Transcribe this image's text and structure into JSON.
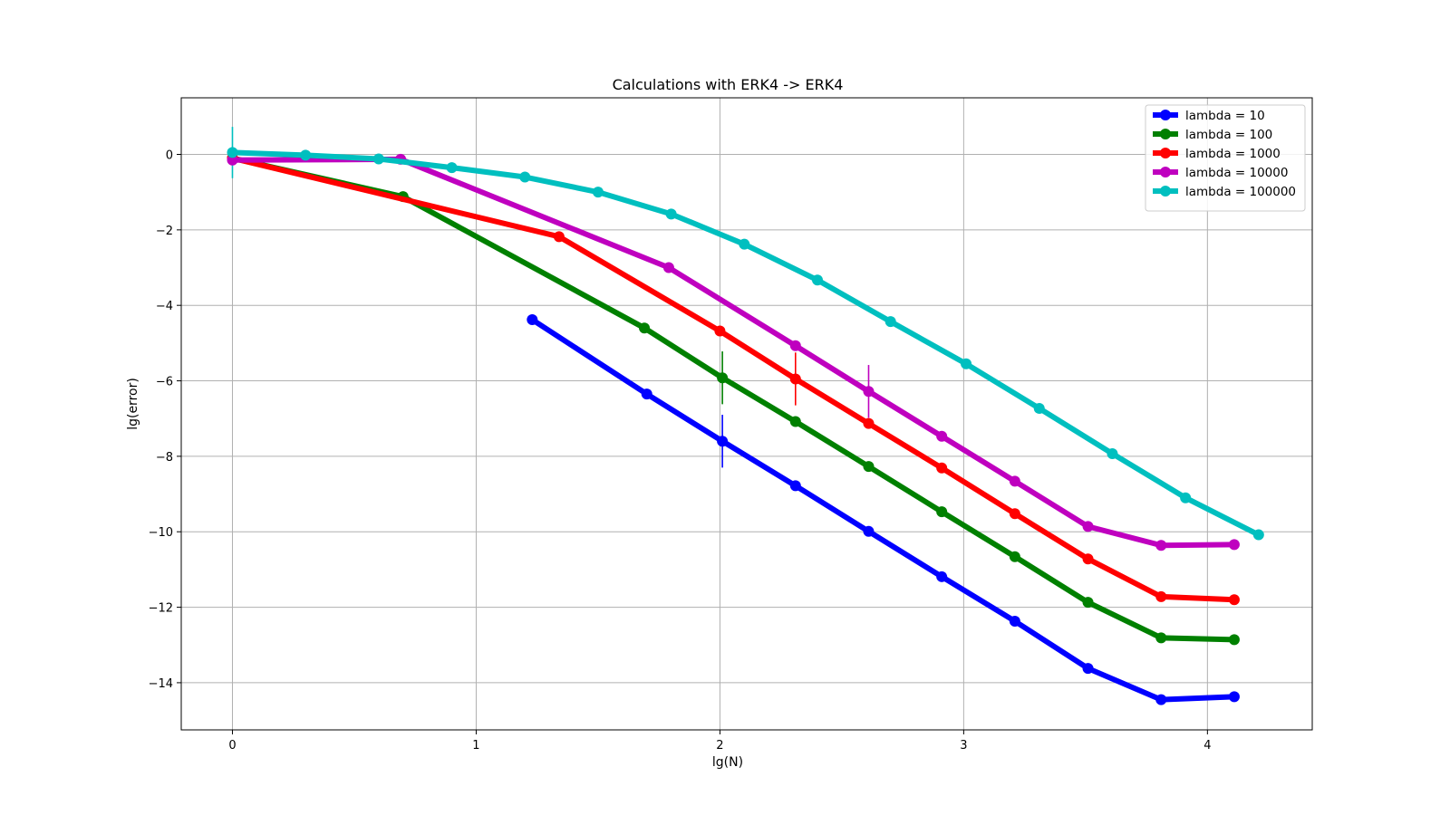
{
  "chart_data": {
    "type": "line",
    "title": "Calculations with ERK4 -> ERK4",
    "xlabel": "lg(N)",
    "ylabel": "lg(error)",
    "xlim": [
      -0.21,
      4.43
    ],
    "ylim": [
      -15.25,
      1.5
    ],
    "xticks": [
      0,
      1,
      2,
      3,
      4
    ],
    "yticks": [
      0,
      -2,
      -4,
      -6,
      -8,
      -10,
      -12,
      -14
    ],
    "xtick_labels": [
      "0",
      "1",
      "2",
      "3",
      "4"
    ],
    "ytick_labels": [
      "0",
      "−2",
      "−4",
      "−6",
      "−8",
      "−10",
      "−12",
      "−14"
    ],
    "grid": true,
    "legend_position": "top-right",
    "series": [
      {
        "name": "lambda = 10",
        "color": "#0000ff",
        "x": [
          1.23,
          1.7,
          2.01,
          2.31,
          2.61,
          2.91,
          3.21,
          3.51,
          3.81,
          4.11
        ],
        "y": [
          -4.38,
          -6.35,
          -7.6,
          -8.78,
          -9.99,
          -11.19,
          -12.37,
          -13.62,
          -14.45,
          -14.37
        ],
        "errorbars": [
          {
            "x": 2.01,
            "y": -7.6,
            "err": 0.7
          }
        ]
      },
      {
        "name": "lambda = 100",
        "color": "#008000",
        "x": [
          0.0,
          0.7,
          1.69,
          2.01,
          2.31,
          2.61,
          2.91,
          3.21,
          3.51,
          3.81,
          4.11
        ],
        "y": [
          -0.1,
          -1.12,
          -4.6,
          -5.92,
          -7.08,
          -8.27,
          -9.47,
          -10.66,
          -11.87,
          -12.81,
          -12.86
        ],
        "errorbars": [
          {
            "x": 2.01,
            "y": -5.92,
            "err": 0.7
          }
        ]
      },
      {
        "name": "lambda = 1000",
        "color": "#ff0000",
        "x": [
          0.0,
          1.34,
          2.0,
          2.31,
          2.61,
          2.91,
          3.21,
          3.51,
          3.81,
          4.11
        ],
        "y": [
          -0.1,
          -2.18,
          -4.68,
          -5.95,
          -7.13,
          -8.31,
          -9.52,
          -10.72,
          -11.72,
          -11.8
        ],
        "errorbars": [
          {
            "x": 2.31,
            "y": -5.95,
            "err": 0.7
          }
        ]
      },
      {
        "name": "lambda = 10000",
        "color": "#bf00bf",
        "x": [
          0.0,
          0.69,
          1.79,
          2.31,
          2.61,
          2.91,
          3.21,
          3.51,
          3.81,
          4.11
        ],
        "y": [
          -0.15,
          -0.13,
          -3.0,
          -5.07,
          -6.28,
          -7.47,
          -8.66,
          -9.86,
          -10.36,
          -10.34
        ],
        "errorbars": [
          {
            "x": 2.61,
            "y": -6.28,
            "err": 0.7
          }
        ]
      },
      {
        "name": "lambda = 100000",
        "color": "#00bfbf",
        "x": [
          0.0,
          0.3,
          0.6,
          0.9,
          1.2,
          1.5,
          1.8,
          2.1,
          2.4,
          2.7,
          3.01,
          3.31,
          3.61,
          3.91,
          4.21
        ],
        "y": [
          0.05,
          -0.02,
          -0.12,
          -0.35,
          -0.6,
          -1.0,
          -1.58,
          -2.38,
          -3.33,
          -4.43,
          -5.55,
          -6.73,
          -7.93,
          -9.1,
          -10.08
        ],
        "errorbars": [
          {
            "x": 0.0,
            "y": 0.05,
            "err": 0.68
          }
        ]
      }
    ]
  }
}
